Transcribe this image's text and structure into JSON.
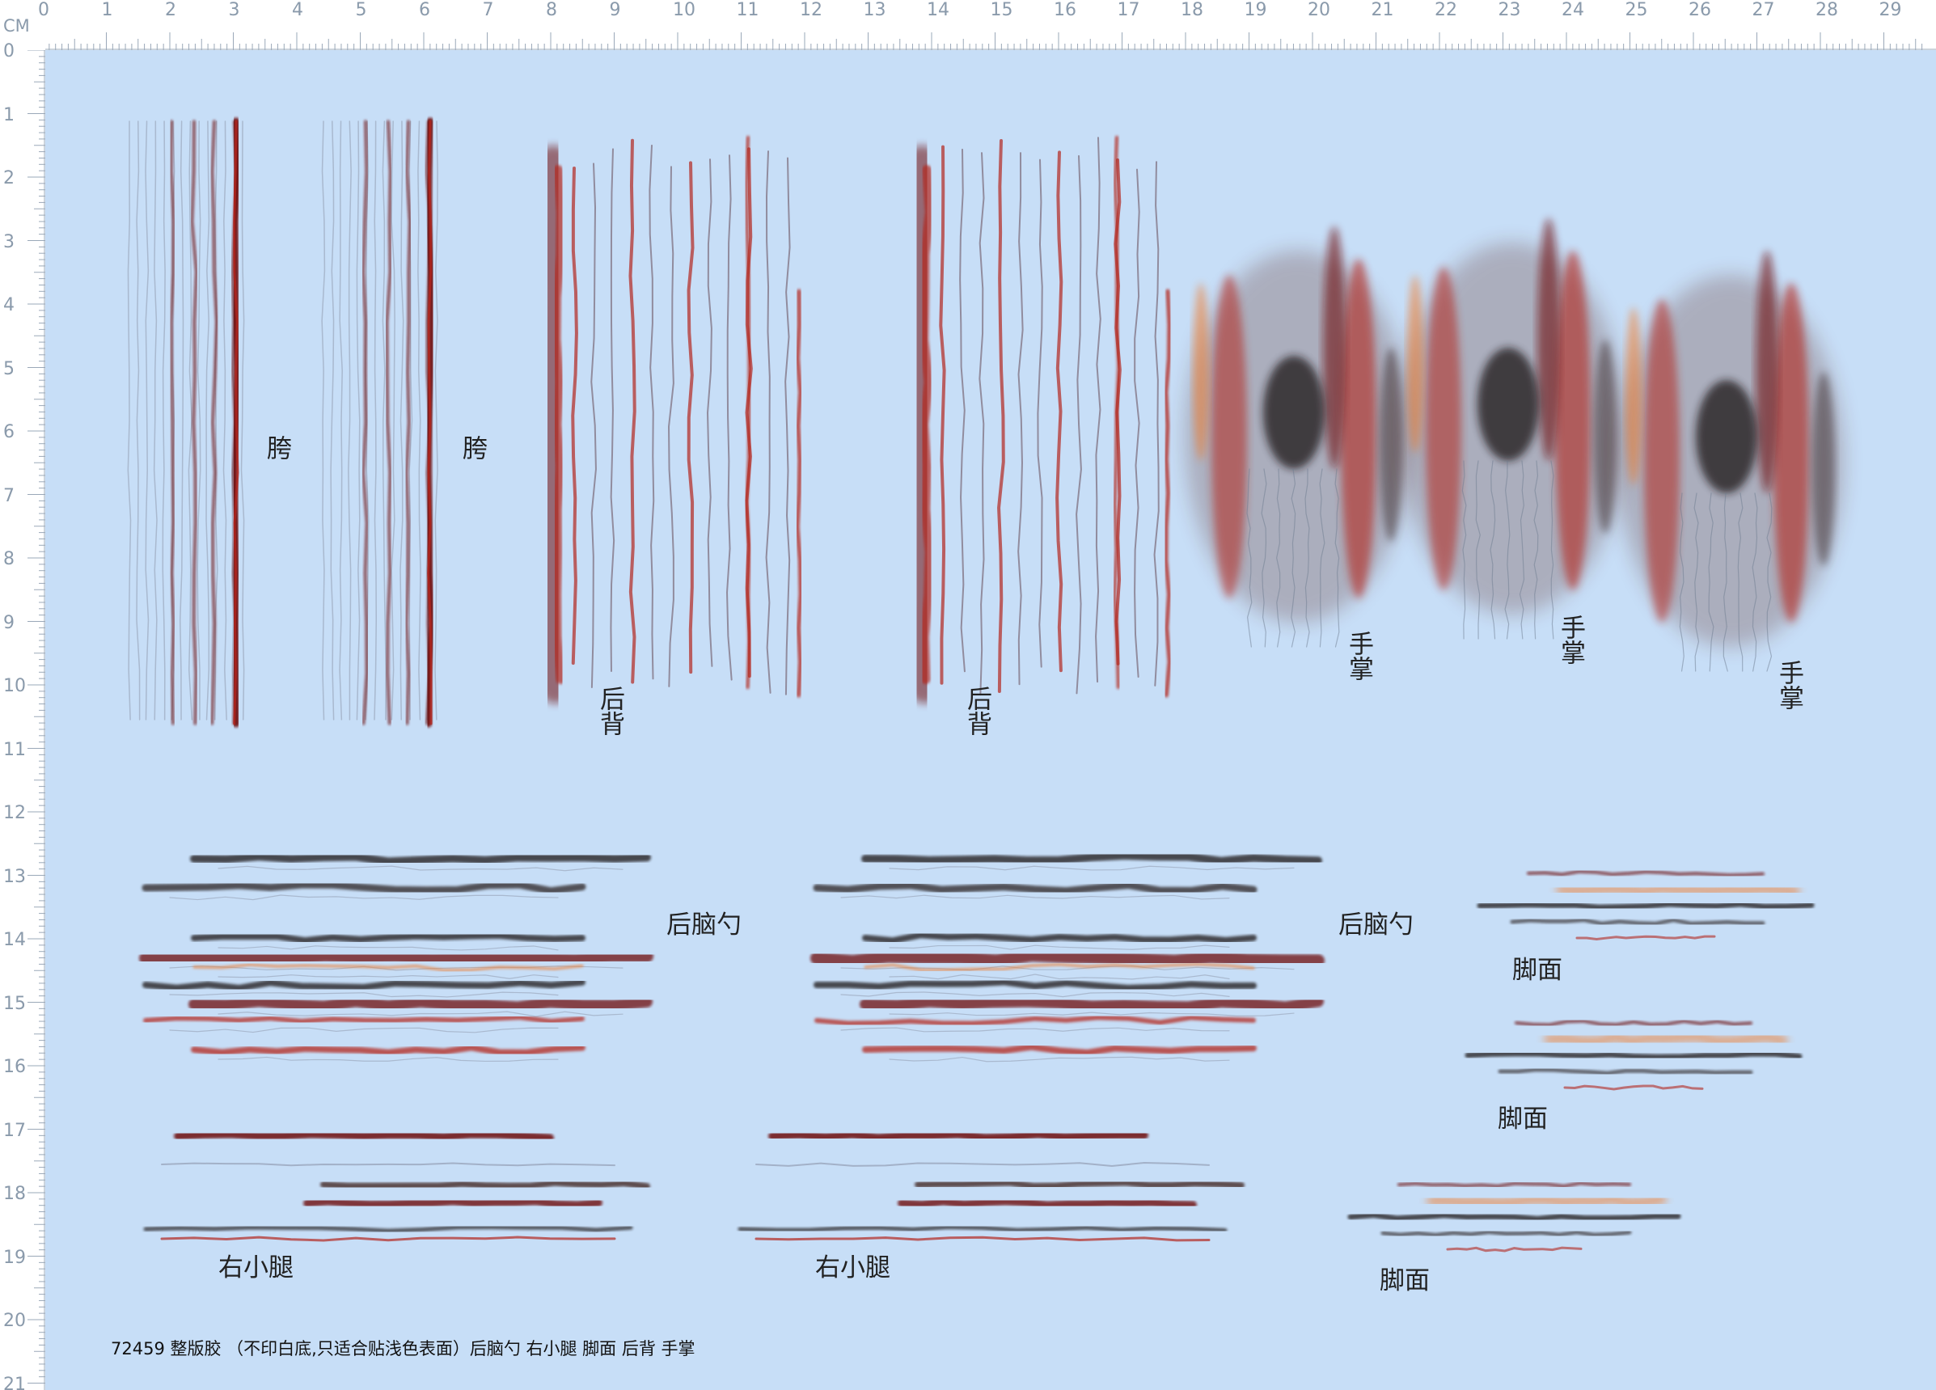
{
  "ruler": {
    "unit": "CM",
    "top_labels": [
      "0",
      "1",
      "2",
      "3",
      "4",
      "5",
      "6",
      "7",
      "8",
      "9",
      "10",
      "11",
      "12",
      "13",
      "14",
      "15",
      "16",
      "17",
      "18",
      "19",
      "20",
      "21",
      "22",
      "23",
      "24",
      "25",
      "26",
      "27",
      "28",
      "29"
    ],
    "left_labels": [
      "0",
      "1",
      "2",
      "3",
      "4",
      "5",
      "6",
      "7",
      "8",
      "9",
      "10",
      "11",
      "12",
      "13",
      "14",
      "15",
      "16",
      "17",
      "18",
      "19",
      "20",
      "21"
    ]
  },
  "labels": {
    "hip_1": "胯",
    "hip_2": "胯",
    "back_1": "后背",
    "back_2": "后背",
    "palm_1": "手掌",
    "palm_2": "手掌",
    "palm_3": "手掌",
    "head_1": "后脑勺",
    "head_2": "后脑勺",
    "calf_1": "右小腿",
    "calf_2": "右小腿",
    "foot_1": "脚面",
    "foot_2": "脚面",
    "foot_3": "脚面"
  },
  "footer": "72459 整版胶 （不印白底,只适合贴浅色表面）后脑勺 右小腿 脚面 后背 手掌",
  "colors": {
    "background": "#c7def7",
    "ruler": "#ffffff",
    "ruler_ticks": "#9aa8b8",
    "dark_red": "#6e1010",
    "red": "#b3261e",
    "black": "#1a1414",
    "orange": "#f07a2a"
  }
}
